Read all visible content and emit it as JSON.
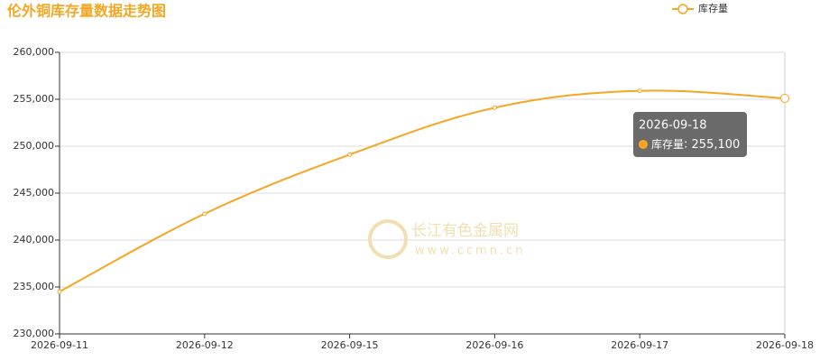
{
  "chart_data": {
    "type": "line",
    "title": "伦外铜库存量数据走势图",
    "categories": [
      "2026-09-11",
      "2026-09-12",
      "2026-09-15",
      "2026-09-16",
      "2026-09-17",
      "2026-09-18"
    ],
    "series": [
      {
        "name": "库存量",
        "color": "#f5a623",
        "values": [
          234500,
          242800,
          249100,
          254100,
          255900,
          255100
        ]
      }
    ],
    "ylim": [
      230000,
      260000
    ],
    "yticks": [
      {
        "value": 230000,
        "label": "230,000"
      },
      {
        "value": 235000,
        "label": "235,000"
      },
      {
        "value": 240000,
        "label": "240,000"
      },
      {
        "value": 245000,
        "label": "245,000"
      },
      {
        "value": 250000,
        "label": "250,000"
      },
      {
        "value": 255000,
        "label": "255,000"
      },
      {
        "value": 260000,
        "label": "260,000"
      }
    ],
    "grid": true,
    "tooltip": {
      "category": "2026-09-18",
      "series": "库存量",
      "value": {
        "value": 255100,
        "label": "255,100"
      }
    },
    "watermark": {
      "name": "长江有色金属网",
      "url": "www.ccmn.cn"
    }
  }
}
